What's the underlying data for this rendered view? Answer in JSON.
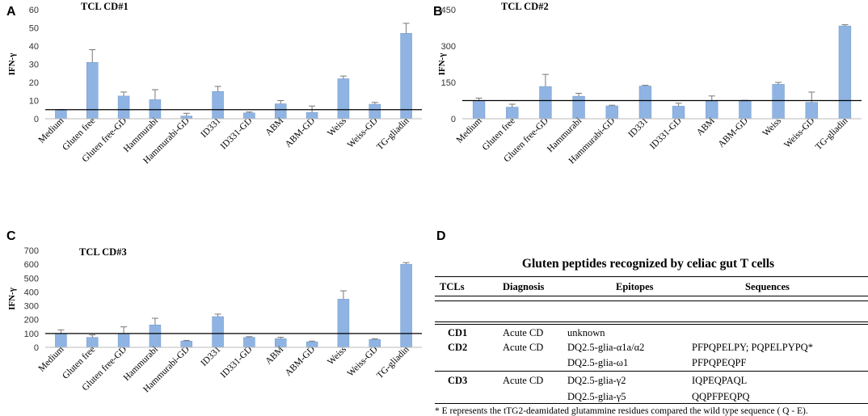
{
  "panels": {
    "a": {
      "letter": "A"
    },
    "b": {
      "letter": "B"
    },
    "c": {
      "letter": "C"
    },
    "d": {
      "letter": "D"
    }
  },
  "chart_data": [
    {
      "id": "a",
      "type": "bar",
      "title": "TCL CD#1",
      "ylabel": "IFN-γ",
      "ylim": [
        0,
        60
      ],
      "yticks": [
        0,
        10,
        20,
        30,
        40,
        50,
        60
      ],
      "reference_line": 5,
      "categories": [
        "Medium",
        "Gluten free",
        "Gluten free-GD",
        "Hammurabi",
        "Hammurabi-GD",
        "ID331",
        "ID331-GD",
        "ABM",
        "ABM-GD",
        "Weiss",
        "Weiss-GD",
        "TG-gliadin"
      ],
      "values": [
        4.8,
        31,
        12.5,
        10.5,
        1.5,
        15,
        3.2,
        8.2,
        3.5,
        22,
        8,
        47
      ],
      "errors": [
        0.3,
        7,
        2.2,
        5.5,
        1.5,
        2.8,
        0.5,
        1.8,
        3.5,
        1.5,
        1,
        5.5
      ],
      "bar_color": "#8fb4e3"
    },
    {
      "id": "b",
      "type": "bar",
      "title": "TCL CD#2",
      "ylabel": "IFN-γ",
      "ylim": [
        0,
        450
      ],
      "yticks": [
        0,
        150,
        300,
        450
      ],
      "reference_line": 75,
      "categories": [
        "Medium",
        "Gluten free",
        "Gluten free-GD",
        "Hammurabi",
        "Hammurabi-GD",
        "ID331",
        "ID331-GD",
        "ABM",
        "ABM-GD",
        "Weiss",
        "Weiss-GD",
        "TG-gliadin"
      ],
      "values": [
        75,
        48,
        133,
        93,
        53,
        135,
        52,
        72,
        73,
        142,
        68,
        383
      ],
      "errors": [
        10,
        12,
        50,
        12,
        3,
        3,
        12,
        22,
        3,
        8,
        42,
        5
      ],
      "bar_color": "#8fb4e3"
    },
    {
      "id": "c",
      "type": "bar",
      "title": "TCL CD#3",
      "ylabel": "IFN-γ",
      "ylim": [
        0,
        700
      ],
      "yticks": [
        0,
        100,
        200,
        300,
        400,
        500,
        600,
        700
      ],
      "reference_line": 100,
      "categories": [
        "Medium",
        "Gluten free",
        "Gluten free-GD",
        "Hammurabi",
        "Hammurabi-GD",
        "ID331",
        "ID331-GD",
        "ABM",
        "ABM-GD",
        "Weiss",
        "Weiss-GD",
        "TG-gliadin"
      ],
      "values": [
        98,
        72,
        100,
        162,
        45,
        222,
        72,
        63,
        40,
        348,
        57,
        600
      ],
      "errors": [
        28,
        18,
        48,
        48,
        5,
        18,
        5,
        10,
        5,
        60,
        5,
        12
      ],
      "bar_color": "#8fb4e3"
    }
  ],
  "table": {
    "title": "Gluten peptides recognized by celiac gut  T cells",
    "headers": {
      "tcls": "TCLs",
      "diagnosis": "Diagnosis",
      "epitopes": "Epitopes",
      "sequences": "Sequences"
    },
    "rows": {
      "cd1": {
        "tcl": "CD1",
        "diagnosis": "Acute CD",
        "epitope1": "unknown"
      },
      "cd2": {
        "tcl": "CD2",
        "diagnosis": "Acute CD",
        "epitope1": "DQ2.5-glia-α1a/α2",
        "sequence1": "PFPQPELPY; PQPELPYPQ*",
        "epitope2": "DQ2.5-glia-ω1",
        "sequence2": "PFPQPEQPF"
      },
      "cd3": {
        "tcl": "CD3",
        "diagnosis": "Acute CD",
        "epitope1": "DQ2.5-glia-γ2",
        "sequence1": "IQPEQPAQL",
        "epitope2": "DQ2.5-glia-γ5",
        "sequence2": "QQPFPEQPQ"
      }
    },
    "footnote": "* E represents the  tTG2-deamidated glutammine  residues compared the wild type sequence ( Q - E)."
  }
}
